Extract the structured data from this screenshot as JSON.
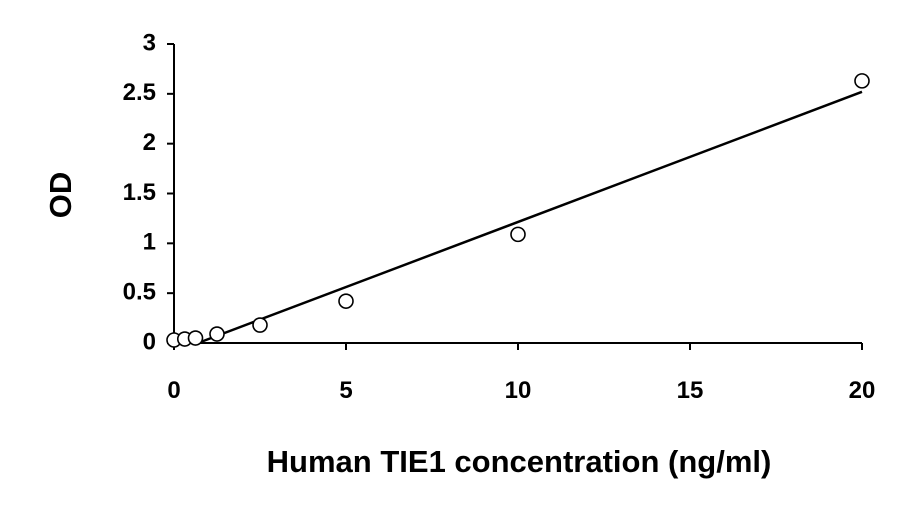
{
  "chart_data": {
    "type": "scatter",
    "title": "",
    "xlabel": "Human TIE1 concentration (ng/ml)",
    "ylabel": "OD",
    "xlim": [
      0,
      20
    ],
    "ylim": [
      0,
      3
    ],
    "x_ticks": [
      0,
      5,
      10,
      15,
      20
    ],
    "y_ticks": [
      0,
      0.5,
      1,
      1.5,
      2,
      2.5,
      3
    ],
    "x_tick_labels": [
      "0",
      "5",
      "10",
      "15",
      "20"
    ],
    "y_tick_labels": [
      "0",
      "0.5",
      "1",
      "1.5",
      "2",
      "2.5",
      "3"
    ],
    "grid": false,
    "legend": "none",
    "series": [
      {
        "points": [
          {
            "x": 0,
            "y": 0.03
          },
          {
            "x": 0.313,
            "y": 0.04
          },
          {
            "x": 0.625,
            "y": 0.05
          },
          {
            "x": 1.25,
            "y": 0.09
          },
          {
            "x": 2.5,
            "y": 0.18
          },
          {
            "x": 5,
            "y": 0.42
          },
          {
            "x": 10,
            "y": 1.09
          },
          {
            "x": 20,
            "y": 2.63
          }
        ]
      }
    ],
    "trendline": {
      "type": "linear",
      "from": {
        "x": 0.7,
        "y": 0
      },
      "to": {
        "x": 20,
        "y": 2.52
      }
    }
  }
}
